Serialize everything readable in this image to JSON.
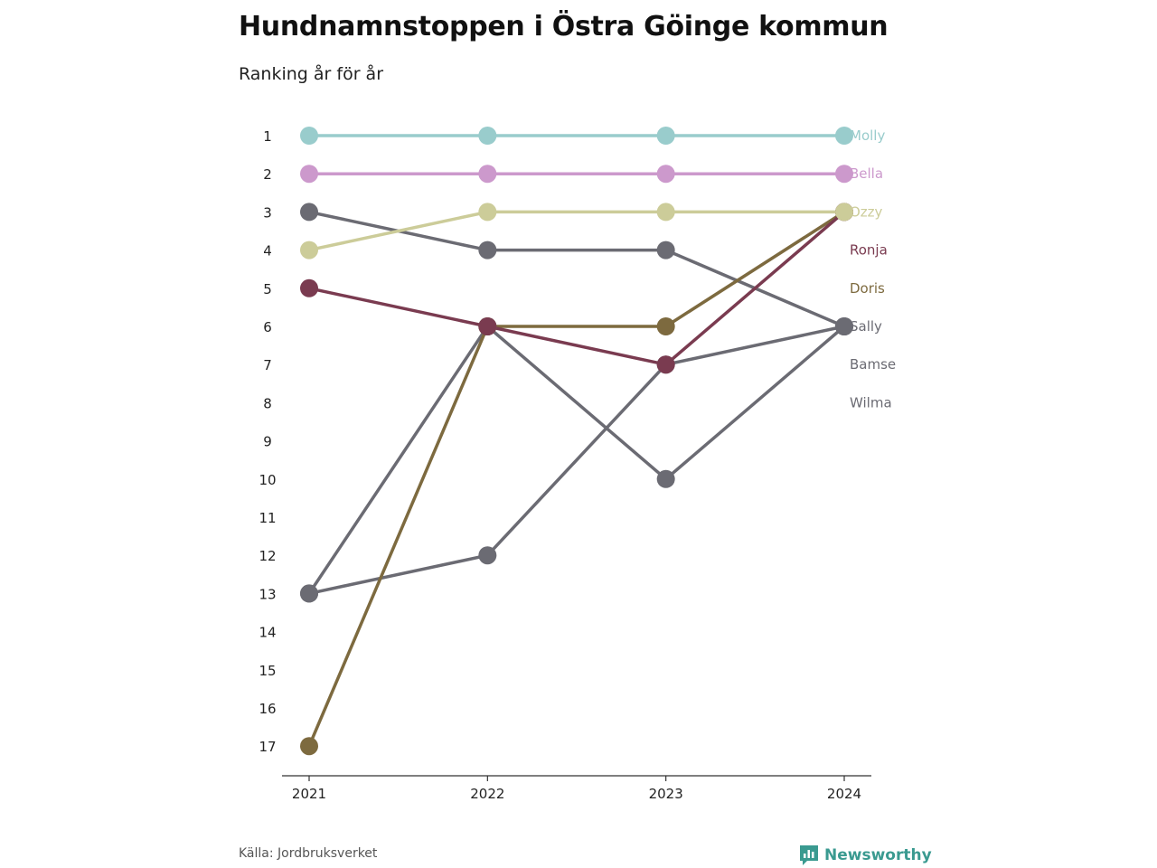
{
  "title": "Hundnamnstoppen i Östra Göinge kommun",
  "subtitle": "Ranking år för år",
  "source": "Källa: Jordbruksverket",
  "brand": {
    "name": "Newsworthy",
    "icon": "newsworthy-logo-icon",
    "color": "#3a9a90"
  },
  "chart_data": {
    "type": "line",
    "title": "Hundnamnstoppen i Östra Göinge kommun",
    "subtitle": "Ranking år för år",
    "x": [
      "2021",
      "2022",
      "2023",
      "2024"
    ],
    "y_ticks": [
      1,
      2,
      3,
      4,
      5,
      6,
      7,
      8,
      9,
      10,
      11,
      12,
      13,
      14,
      15,
      16,
      17
    ],
    "ylim": [
      17,
      1
    ],
    "y_inverted": true,
    "grid": false,
    "legend": "direct labels right",
    "series": [
      {
        "name": "Wilma",
        "color": "#6b6b73",
        "values": [
          13,
          12,
          7,
          6
        ]
      },
      {
        "name": "Bamse",
        "color": "#6b6b73",
        "values": [
          13,
          6,
          10,
          6
        ]
      },
      {
        "name": "Sally",
        "color": "#6b6b73",
        "values": [
          3,
          4,
          4,
          6
        ]
      },
      {
        "name": "Doris",
        "color": "#7d6a3f",
        "values": [
          17,
          6,
          6,
          3
        ]
      },
      {
        "name": "Ronja",
        "color": "#7a3b50",
        "values": [
          5,
          6,
          7,
          3
        ]
      },
      {
        "name": "Ozzy",
        "color": "#cccc99",
        "values": [
          4,
          3,
          3,
          3
        ]
      },
      {
        "name": "Bella",
        "color": "#cc99cc",
        "values": [
          2,
          2,
          2,
          2
        ]
      },
      {
        "name": "Molly",
        "color": "#99cccc",
        "values": [
          1,
          1,
          1,
          1
        ]
      }
    ]
  }
}
